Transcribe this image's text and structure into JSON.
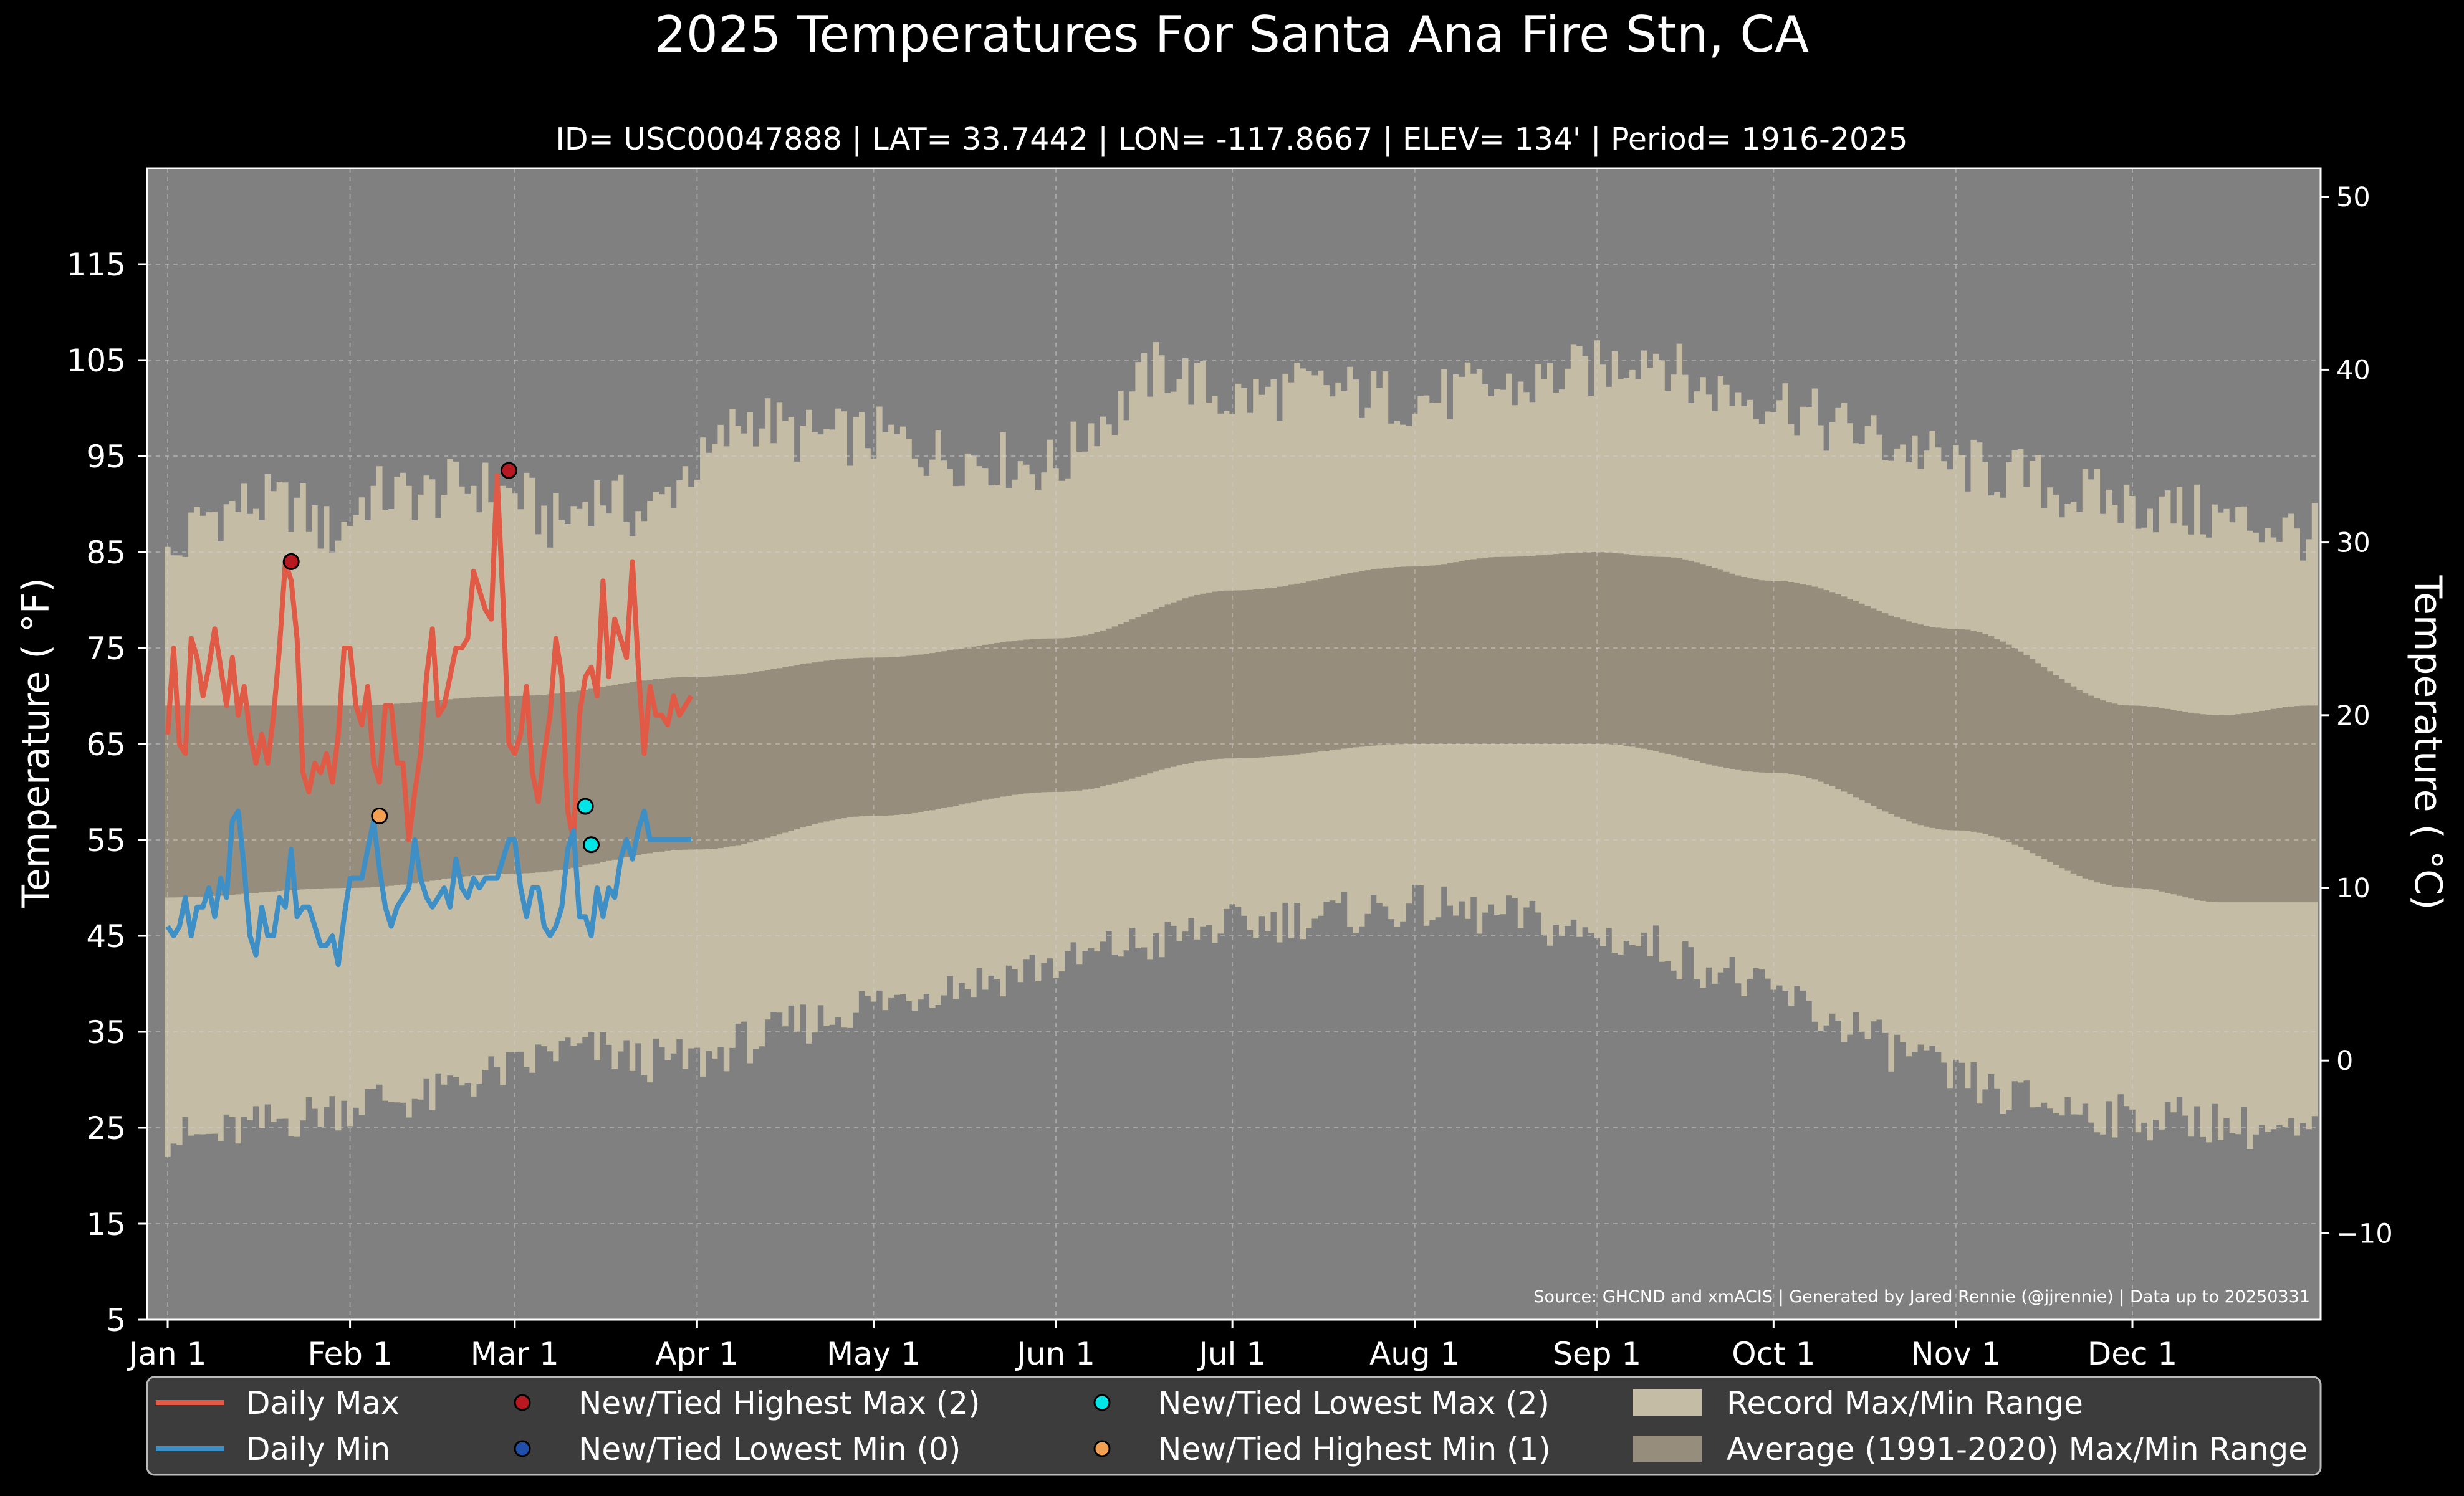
{
  "chart_data": {
    "type": "area",
    "title": "2025 Temperatures For Santa Ana Fire Stn, CA",
    "subtitle": "ID= USC00047888 | LAT= 33.7442 | LON= -117.8667 | ELEV= 134' | Period= 1916-2025",
    "ylabel": "Temperature ( $^\\circ$F)",
    "ylabel_text": "Temperature ( °F)",
    "ylabel_right_text": "Temperature ( °C)",
    "source": "Source: GHCND and xmACIS | Generated by Jared Rennie (@jjrennie) | Data up to 20250331",
    "ylim": [
      5,
      125
    ],
    "xlim": [
      -2.5,
      367
    ],
    "grid": true,
    "y_ticks": [
      5,
      15,
      25,
      35,
      45,
      55,
      65,
      75,
      85,
      95,
      105,
      115
    ],
    "y_ticks_c": [
      -10,
      0,
      10,
      20,
      30,
      40,
      50
    ],
    "y_ticks_c_labels": [
      "−10",
      "0",
      "10",
      "20",
      "30",
      "40",
      "50"
    ],
    "x_ticks": [
      {
        "label": "Jan 1",
        "day": 1
      },
      {
        "label": "Feb 1",
        "day": 32
      },
      {
        "label": "Mar 1",
        "day": 60
      },
      {
        "label": "Apr 1",
        "day": 91
      },
      {
        "label": "May 1",
        "day": 121
      },
      {
        "label": "Jun 1",
        "day": 152
      },
      {
        "label": "Jul 1",
        "day": 182
      },
      {
        "label": "Aug 1",
        "day": 213
      },
      {
        "label": "Sep 1",
        "day": 244
      },
      {
        "label": "Oct 1",
        "day": 274
      },
      {
        "label": "Nov 1",
        "day": 305
      },
      {
        "label": "Dec 1",
        "day": 335
      }
    ],
    "record_max_anchors": [
      [
        1,
        84
      ],
      [
        8,
        89
      ],
      [
        15,
        90
      ],
      [
        22,
        90
      ],
      [
        29,
        87
      ],
      [
        36,
        91
      ],
      [
        45,
        91
      ],
      [
        52,
        92
      ],
      [
        60,
        91
      ],
      [
        67,
        88
      ],
      [
        74,
        91
      ],
      [
        82,
        89
      ],
      [
        91,
        94
      ],
      [
        100,
        99
      ],
      [
        110,
        97
      ],
      [
        121,
        97
      ],
      [
        135,
        95
      ],
      [
        152,
        94
      ],
      [
        160,
        99
      ],
      [
        170,
        104
      ],
      [
        182,
        101
      ],
      [
        195,
        102
      ],
      [
        213,
        101
      ],
      [
        228,
        102
      ],
      [
        244,
        104
      ],
      [
        253,
        106
      ],
      [
        262,
        102
      ],
      [
        274,
        101
      ],
      [
        285,
        98
      ],
      [
        296,
        96
      ],
      [
        305,
        94
      ],
      [
        315,
        93
      ],
      [
        325,
        91
      ],
      [
        335,
        90
      ],
      [
        345,
        89
      ],
      [
        355,
        88
      ],
      [
        365,
        87
      ]
    ],
    "record_min_anchors": [
      [
        1,
        24
      ],
      [
        8,
        24
      ],
      [
        15,
        25
      ],
      [
        22,
        26
      ],
      [
        29,
        27
      ],
      [
        36,
        28
      ],
      [
        45,
        28
      ],
      [
        52,
        30
      ],
      [
        60,
        31
      ],
      [
        67,
        33
      ],
      [
        74,
        33
      ],
      [
        82,
        32
      ],
      [
        91,
        32
      ],
      [
        100,
        34
      ],
      [
        110,
        36
      ],
      [
        121,
        38
      ],
      [
        135,
        40
      ],
      [
        152,
        42
      ],
      [
        165,
        44
      ],
      [
        182,
        46
      ],
      [
        195,
        47
      ],
      [
        213,
        48
      ],
      [
        228,
        47
      ],
      [
        244,
        45
      ],
      [
        253,
        44
      ],
      [
        262,
        42
      ],
      [
        274,
        39
      ],
      [
        285,
        36
      ],
      [
        296,
        33
      ],
      [
        305,
        30
      ],
      [
        315,
        28
      ],
      [
        325,
        27
      ],
      [
        335,
        26
      ],
      [
        345,
        26
      ],
      [
        355,
        25
      ],
      [
        365,
        24
      ]
    ],
    "avg_max_anchors": [
      [
        1,
        69
      ],
      [
        32,
        69
      ],
      [
        60,
        70
      ],
      [
        91,
        72
      ],
      [
        121,
        74
      ],
      [
        152,
        76
      ],
      [
        182,
        81
      ],
      [
        213,
        83.5
      ],
      [
        228,
        84.5
      ],
      [
        244,
        85
      ],
      [
        255,
        84.5
      ],
      [
        274,
        82
      ],
      [
        305,
        77
      ],
      [
        335,
        69
      ],
      [
        350,
        68
      ],
      [
        365,
        69
      ]
    ],
    "avg_min_anchors": [
      [
        1,
        49
      ],
      [
        32,
        50
      ],
      [
        60,
        51.5
      ],
      [
        91,
        54
      ],
      [
        121,
        57.5
      ],
      [
        152,
        60
      ],
      [
        182,
        63.5
      ],
      [
        213,
        65
      ],
      [
        244,
        65
      ],
      [
        274,
        62
      ],
      [
        305,
        56
      ],
      [
        335,
        50
      ],
      [
        350,
        48.5
      ],
      [
        365,
        48.5
      ]
    ],
    "series": [
      {
        "name": "Daily Max",
        "color": "#e05a46",
        "x": [
          1,
          2,
          3,
          4,
          5,
          6,
          7,
          8,
          9,
          10,
          11,
          12,
          13,
          14,
          15,
          16,
          17,
          18,
          19,
          20,
          21,
          22,
          23,
          24,
          25,
          26,
          27,
          28,
          29,
          30,
          31,
          32,
          33,
          34,
          35,
          36,
          37,
          38,
          39,
          40,
          41,
          42,
          43,
          44,
          45,
          46,
          47,
          48,
          49,
          50,
          51,
          52,
          53,
          54,
          55,
          56,
          57,
          58,
          59,
          60,
          61,
          62,
          63,
          64,
          65,
          66,
          67,
          68,
          69,
          70,
          71,
          72,
          73,
          74,
          75,
          76,
          77,
          78,
          79,
          80,
          81,
          82,
          83,
          84,
          85,
          86,
          87,
          88,
          89,
          90
        ],
        "values": [
          66,
          75,
          65,
          64,
          76,
          74,
          70,
          73,
          77,
          73,
          69,
          74,
          68,
          71,
          66,
          63,
          66,
          63,
          68,
          75,
          84,
          82,
          76,
          62,
          60,
          63,
          62,
          64,
          61,
          66,
          75,
          75,
          69,
          67,
          71,
          63,
          61,
          69,
          69,
          63,
          63,
          55,
          60,
          64,
          72,
          77,
          68,
          69,
          72,
          75,
          75,
          76,
          83,
          81,
          79,
          78,
          93,
          80,
          65,
          64,
          66,
          71,
          62,
          59,
          64,
          68,
          76,
          72,
          58,
          55,
          68,
          72,
          73,
          70,
          82,
          72,
          78,
          76,
          74,
          84,
          73,
          64,
          71,
          68,
          68,
          67,
          70,
          68,
          69,
          70
        ]
      },
      {
        "name": "Daily Min",
        "color": "#3d8fc5",
        "x": [
          1,
          2,
          3,
          4,
          5,
          6,
          7,
          8,
          9,
          10,
          11,
          12,
          13,
          14,
          15,
          16,
          17,
          18,
          19,
          20,
          21,
          22,
          23,
          24,
          25,
          26,
          27,
          28,
          29,
          30,
          31,
          32,
          33,
          34,
          35,
          36,
          37,
          38,
          39,
          40,
          41,
          42,
          43,
          44,
          45,
          46,
          47,
          48,
          49,
          50,
          51,
          52,
          53,
          54,
          55,
          56,
          57,
          58,
          59,
          60,
          61,
          62,
          63,
          64,
          65,
          66,
          67,
          68,
          69,
          70,
          71,
          72,
          73,
          74,
          75,
          76,
          77,
          78,
          79,
          80,
          81,
          82,
          83,
          84,
          85,
          86,
          87,
          88,
          89,
          90
        ],
        "values": [
          46,
          45,
          46,
          49,
          45,
          48,
          48,
          50,
          47,
          51,
          49,
          57,
          58,
          52,
          45,
          43,
          48,
          45,
          45,
          49,
          48,
          54,
          47,
          48,
          48,
          46,
          44,
          44,
          45,
          42,
          47,
          51,
          51,
          51,
          54,
          57,
          52,
          48,
          46,
          48,
          49,
          50,
          55,
          51,
          49,
          48,
          49,
          50,
          48,
          53,
          50,
          49,
          51,
          50,
          51,
          51,
          51,
          53,
          55,
          55,
          50,
          47,
          50,
          50,
          46,
          45,
          46,
          48,
          54,
          56,
          47,
          47,
          45,
          50,
          47,
          50,
          49,
          53,
          55,
          53,
          56,
          58,
          55,
          55,
          55,
          55,
          55,
          55,
          55,
          55
        ]
      }
    ],
    "markers": [
      {
        "name": "New/Tied Highest Max (2)",
        "color": "#b8181f",
        "points": [
          [
            22,
            84
          ],
          [
            59,
            93.5
          ]
        ]
      },
      {
        "name": "New/Tied Lowest Min (0)",
        "color": "#1f4fa8",
        "points": []
      },
      {
        "name": "New/Tied Lowest Max (2)",
        "color": "#00e5e5",
        "points": [
          [
            72,
            58.5
          ],
          [
            73,
            54.5
          ]
        ]
      },
      {
        "name": "New/Tied Highest Min (1)",
        "color": "#f0a050",
        "points": [
          [
            37,
            57.5
          ]
        ]
      }
    ],
    "bands": [
      {
        "name": "Record Max/Min Range",
        "color": "#c4bca4"
      },
      {
        "name": "Average (1991-2020) Max/Min Range",
        "color": "#978d7c"
      }
    ],
    "legend": {
      "placement": "bottom",
      "items": [
        {
          "label": "Daily Max",
          "kind": "line",
          "color": "#e05a46"
        },
        {
          "label": "Daily Min",
          "kind": "line",
          "color": "#3d8fc5"
        },
        {
          "label": "New/Tied Highest Max (2)",
          "kind": "dot",
          "color": "#b8181f"
        },
        {
          "label": "New/Tied Lowest Min (0)",
          "kind": "dot",
          "color": "#1f4fa8"
        },
        {
          "label": "New/Tied Lowest Max (2)",
          "kind": "dot",
          "color": "#00e5e5"
        },
        {
          "label": "New/Tied Highest Min (1)",
          "kind": "dot",
          "color": "#f0a050"
        },
        {
          "label": "Record Max/Min Range",
          "kind": "patch",
          "color": "#c4bca4"
        },
        {
          "label": "Average (1991-2020) Max/Min Range",
          "kind": "patch",
          "color": "#978d7c"
        }
      ]
    },
    "colors": {
      "background": "#000000",
      "plot_background": "#808080",
      "grid": "#d0d0d0",
      "legend_background": "#3c3c3c",
      "text": "#ffffff"
    }
  }
}
